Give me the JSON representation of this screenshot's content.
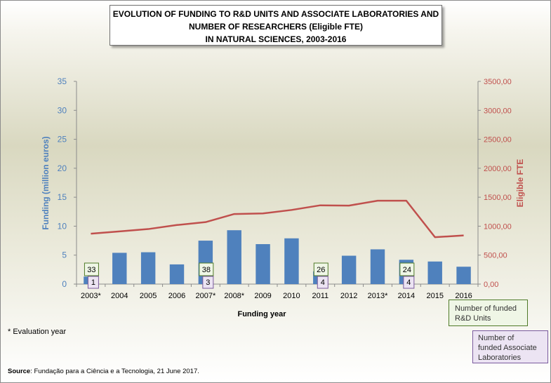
{
  "title": {
    "line1": "EVOLUTION OF FUNDING TO R&D UNITS AND ASSOCIATE LABORATORIES AND",
    "line2": "NUMBER OF RESEARCHERS (Eligible FTE)",
    "line3": "IN NATURAL SCIENCES, 2003-2016"
  },
  "notes": {
    "evaluation_year": "* Evaluation year",
    "source_label": "Source",
    "source_text": ": Fundação para a Ciência e a Tecnologia, 21 June 2017."
  },
  "legend": {
    "rd_units": [
      "Number of funded",
      "R&D Units"
    ],
    "associate_labs": [
      "Number of",
      "funded Associate",
      "Laboratories"
    ]
  },
  "chart_data": {
    "type": "bar",
    "categories": [
      "2003*",
      "2004",
      "2005",
      "2006",
      "2007*",
      "2008*",
      "2009",
      "2010",
      "2011",
      "2012",
      "2013*",
      "2014",
      "2015",
      "2016"
    ],
    "series": [
      {
        "axis": "left",
        "type": "bar",
        "color": "#4f81bd",
        "values": [
          1.3,
          5.4,
          5.5,
          3.4,
          7.5,
          9.3,
          6.9,
          7.9,
          2.2,
          4.9,
          6.0,
          4.2,
          3.9,
          3.0
        ]
      },
      {
        "name": "Eligible FTE",
        "axis": "right",
        "type": "line",
        "color": "#c0504d",
        "values": [
          870,
          910,
          950,
          1020,
          1070,
          1210,
          1220,
          1280,
          1360,
          1355,
          1440,
          1440,
          810,
          840
        ]
      }
    ],
    "xlabel": "Funding year",
    "ylabel": "Funding (million euros)",
    "y2label": "Eligible FTE",
    "ylim": [
      0,
      35
    ],
    "y_ticks": [
      "0",
      "5",
      "10",
      "15",
      "20",
      "25",
      "30",
      "35"
    ],
    "y2lim": [
      0,
      3500
    ],
    "y2_ticks": [
      "0,00",
      "500,00",
      "1000,00",
      "1500,00",
      "2000,00",
      "2500,00",
      "3000,00",
      "3500,00"
    ],
    "grid": false,
    "annotations": [
      {
        "category": "2003*",
        "rd_units": "33",
        "associate_labs": "1"
      },
      {
        "category": "2007*",
        "rd_units": "38",
        "associate_labs": "3"
      },
      {
        "category": "2011",
        "rd_units": "26",
        "associate_labs": "4"
      },
      {
        "category": "2014",
        "rd_units": "24",
        "associate_labs": "4"
      }
    ]
  },
  "colors": {
    "bars": "#4f81bd",
    "line": "#c0504d",
    "left_axis_text": "#4f81bd",
    "right_axis_text": "#c0504d",
    "rd_box_border": "#4f7a28",
    "rd_box_fill": "#eff6e6",
    "al_box_border": "#7a5a9e",
    "al_box_fill": "#ece4f3"
  }
}
